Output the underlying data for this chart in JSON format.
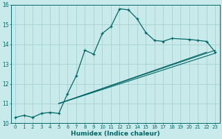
{
  "xlabel": "Humidex (Indice chaleur)",
  "background_color": "#c8eaea",
  "grid_color": "#a8d0d0",
  "line_color": "#006666",
  "xlim": [
    -0.5,
    23.5
  ],
  "ylim": [
    10,
    16
  ],
  "yticks": [
    10,
    11,
    12,
    13,
    14,
    15,
    16
  ],
  "xtick_labels": [
    "0",
    "1",
    "2",
    "3",
    "4",
    "5",
    "6",
    "7",
    "8",
    "9",
    "10",
    "11",
    "12",
    "13",
    "14",
    "15",
    "16",
    "17",
    "18",
    "19",
    "20",
    "21",
    "22",
    "23"
  ],
  "series_main": {
    "x": [
      0,
      1,
      2,
      3,
      4,
      5,
      6,
      7,
      8,
      9,
      10,
      11,
      12,
      13,
      14,
      15,
      16,
      17,
      18,
      20,
      21,
      22,
      23
    ],
    "y": [
      10.3,
      10.4,
      10.3,
      10.5,
      10.55,
      10.5,
      11.5,
      12.4,
      13.7,
      13.5,
      14.55,
      14.9,
      15.8,
      15.75,
      15.3,
      14.6,
      14.2,
      14.15,
      14.3,
      14.25,
      14.2,
      14.15,
      13.6
    ]
  },
  "diag_lines": [
    {
      "x": [
        5,
        22
      ],
      "y": [
        11.0,
        13.6
      ]
    },
    {
      "x": [
        5,
        23
      ],
      "y": [
        11.0,
        13.55
      ]
    },
    {
      "x": [
        5,
        23
      ],
      "y": [
        11.0,
        13.7
      ]
    }
  ]
}
